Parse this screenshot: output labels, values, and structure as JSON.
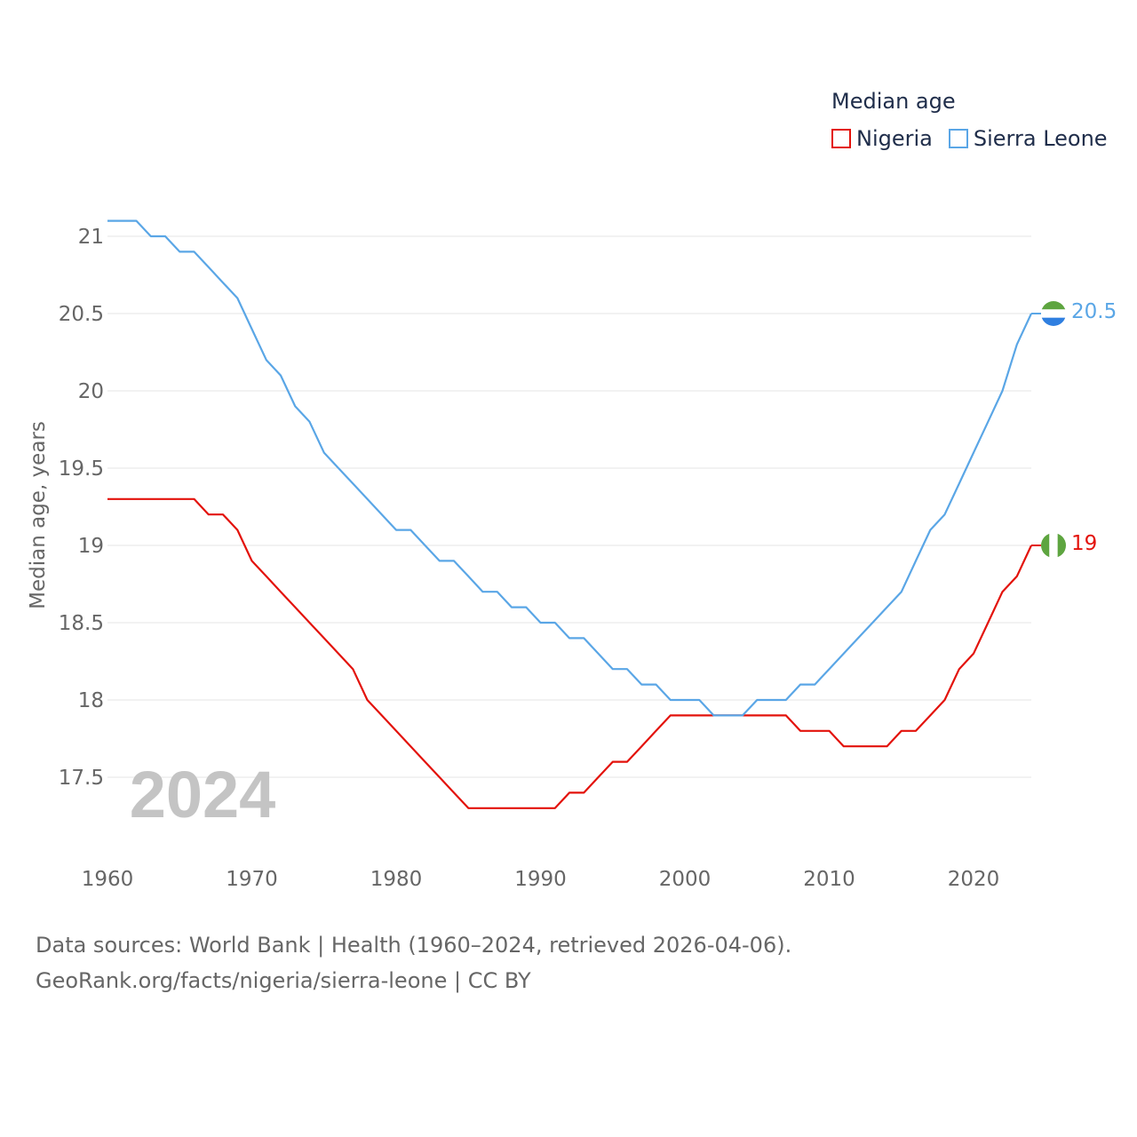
{
  "legend": {
    "title": "Median age",
    "items": [
      {
        "label": "Nigeria",
        "color": "#e3120b"
      },
      {
        "label": "Sierra Leone",
        "color": "#5aa6e6"
      }
    ]
  },
  "footer": {
    "sources": "Data sources: World Bank | Health (1960–2024, retrieved 2026-04-06).",
    "link": "GeoRank.org/facts/nigeria/sierra-leone | CC BY"
  },
  "chart_data": {
    "type": "line",
    "title": "Median age",
    "xlabel": "",
    "ylabel": "Median age, years",
    "year_label": "2024",
    "xlim": [
      1960,
      2024
    ],
    "ylim": [
      17.1,
      21.2
    ],
    "x_ticks": [
      1960,
      1970,
      1980,
      1990,
      2000,
      2010,
      2020
    ],
    "y_ticks": [
      17.5,
      18,
      18.5,
      19,
      19.5,
      20,
      20.5,
      21
    ],
    "grid": true,
    "legend_position": "top-right",
    "x": [
      1960,
      1961,
      1962,
      1963,
      1964,
      1965,
      1966,
      1967,
      1968,
      1969,
      1970,
      1971,
      1972,
      1973,
      1974,
      1975,
      1976,
      1977,
      1978,
      1979,
      1980,
      1981,
      1982,
      1983,
      1984,
      1985,
      1986,
      1987,
      1988,
      1989,
      1990,
      1991,
      1992,
      1993,
      1994,
      1995,
      1996,
      1997,
      1998,
      1999,
      2000,
      2001,
      2002,
      2003,
      2004,
      2005,
      2006,
      2007,
      2008,
      2009,
      2010,
      2011,
      2012,
      2013,
      2014,
      2015,
      2016,
      2017,
      2018,
      2019,
      2020,
      2021,
      2022,
      2023,
      2024
    ],
    "series": [
      {
        "name": "Nigeria",
        "color": "#e3120b",
        "end_label": "19",
        "values": [
          19.3,
          19.3,
          19.3,
          19.3,
          19.3,
          19.3,
          19.3,
          19.2,
          19.2,
          19.1,
          18.9,
          18.8,
          18.7,
          18.6,
          18.5,
          18.4,
          18.3,
          18.2,
          18.0,
          17.9,
          17.8,
          17.7,
          17.6,
          17.5,
          17.4,
          17.3,
          17.3,
          17.3,
          17.3,
          17.3,
          17.3,
          17.3,
          17.4,
          17.4,
          17.5,
          17.6,
          17.6,
          17.7,
          17.8,
          17.9,
          17.9,
          17.9,
          17.9,
          17.9,
          17.9,
          17.9,
          17.9,
          17.9,
          17.8,
          17.8,
          17.8,
          17.7,
          17.7,
          17.7,
          17.7,
          17.8,
          17.8,
          17.9,
          18.0,
          18.2,
          18.3,
          18.5,
          18.7,
          18.8,
          19.0
        ]
      },
      {
        "name": "Sierra Leone",
        "color": "#5aa6e6",
        "end_label": "20.5",
        "values": [
          21.1,
          21.1,
          21.1,
          21.0,
          21.0,
          20.9,
          20.9,
          20.8,
          20.7,
          20.6,
          20.4,
          20.2,
          20.1,
          19.9,
          19.8,
          19.6,
          19.5,
          19.4,
          19.3,
          19.2,
          19.1,
          19.1,
          19.0,
          18.9,
          18.9,
          18.8,
          18.7,
          18.7,
          18.6,
          18.6,
          18.5,
          18.5,
          18.4,
          18.4,
          18.3,
          18.2,
          18.2,
          18.1,
          18.1,
          18.0,
          18.0,
          18.0,
          17.9,
          17.9,
          17.9,
          18.0,
          18.0,
          18.0,
          18.1,
          18.1,
          18.2,
          18.3,
          18.4,
          18.5,
          18.6,
          18.7,
          18.9,
          19.1,
          19.2,
          19.4,
          19.6,
          19.8,
          20.0,
          20.3,
          20.5
        ]
      }
    ]
  }
}
